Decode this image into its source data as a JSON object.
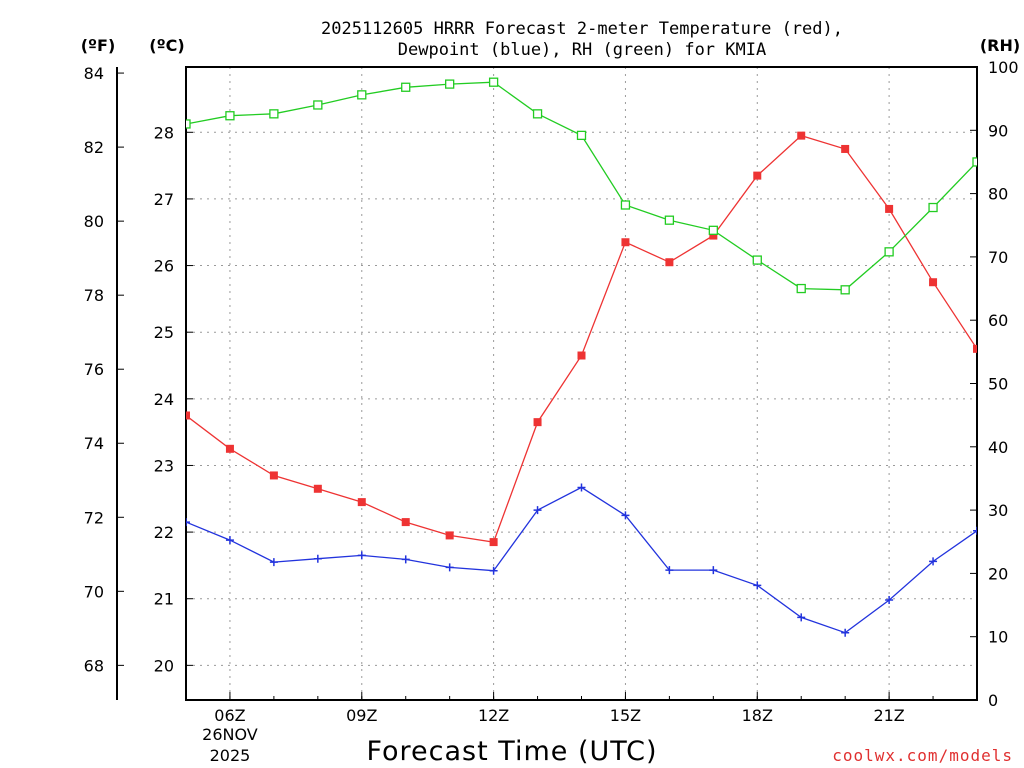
{
  "chart_data": {
    "type": "line",
    "title_line1": "2025112605 HRRR Forecast 2-meter Temperature (red),",
    "title_line2": "Dewpoint (blue), RH (green) for KMIA",
    "units": {
      "fahrenheit": "(ºF)",
      "celsius": "(ºC)",
      "rh": "(RH)"
    },
    "xlabel": "Forecast Time (UTC)",
    "date_label": [
      "26NOV",
      "2025"
    ],
    "credit": "coolwx.com/models",
    "x_hours": [
      5,
      6,
      7,
      8,
      9,
      10,
      11,
      12,
      13,
      14,
      15,
      16,
      17,
      18,
      19,
      20,
      21,
      22,
      23
    ],
    "x_ticks": [
      {
        "hour": 6,
        "label": "06Z"
      },
      {
        "hour": 9,
        "label": "09Z"
      },
      {
        "hour": 12,
        "label": "12Z"
      },
      {
        "hour": 15,
        "label": "15Z"
      },
      {
        "hour": 18,
        "label": "18Z"
      },
      {
        "hour": 21,
        "label": "21Z"
      }
    ],
    "xlim": [
      5,
      23
    ],
    "f_axis": {
      "ticks": [
        68,
        70,
        72,
        74,
        76,
        78,
        80,
        82,
        84
      ]
    },
    "c_axis": {
      "ylim": [
        19.48,
        28.98
      ],
      "ticks": [
        20,
        21,
        22,
        23,
        24,
        25,
        26,
        27,
        28
      ]
    },
    "rh_axis": {
      "ylim": [
        0,
        100
      ],
      "ticks": [
        0,
        10,
        20,
        30,
        40,
        50,
        60,
        70,
        80,
        90,
        100
      ]
    },
    "series": [
      {
        "name": "2-meter Temperature",
        "color": "#ee3333",
        "marker": "filled-square",
        "axis": "c",
        "values": [
          23.75,
          23.25,
          22.85,
          22.65,
          22.45,
          22.15,
          21.95,
          21.85,
          23.65,
          24.65,
          26.35,
          26.05,
          26.45,
          27.35,
          27.95,
          27.75,
          26.85,
          25.75,
          24.75
        ]
      },
      {
        "name": "Dewpoint",
        "color": "#2233dd",
        "marker": "plus",
        "axis": "c",
        "values": [
          22.15,
          21.88,
          21.55,
          21.6,
          21.65,
          21.59,
          21.47,
          21.42,
          22.33,
          22.67,
          22.25,
          21.43,
          21.43,
          21.2,
          20.72,
          20.49,
          20.98,
          21.56,
          22.02
        ]
      },
      {
        "name": "RH",
        "color": "#22cc22",
        "marker": "open-square",
        "axis": "rh",
        "values": [
          91,
          92.3,
          92.6,
          94,
          95.6,
          96.8,
          97.3,
          97.6,
          92.6,
          89.2,
          78.2,
          75.8,
          74.2,
          69.5,
          65,
          64.8,
          70.8,
          77.8,
          85
        ]
      }
    ]
  }
}
